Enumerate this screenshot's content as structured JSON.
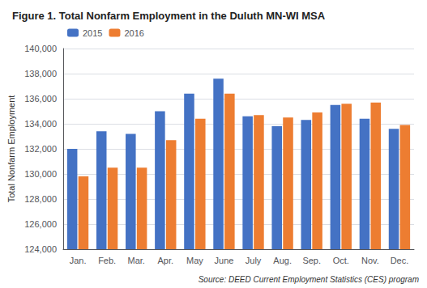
{
  "chart_data": {
    "type": "bar",
    "title": "Figure 1. Total Nonfarm Employment in the Duluth MN-WI MSA",
    "ylabel": "Total Nonfarm Employment",
    "annotations": [
      "Source: DEED Current Employment Statistics (CES) program"
    ],
    "categories": [
      "Jan.",
      "Feb.",
      "Mar.",
      "Apr.",
      "May",
      "June",
      "July",
      "Aug.",
      "Sep.",
      "Oct.",
      "Nov.",
      "Dec."
    ],
    "series": [
      {
        "name": "2015",
        "color": "#4472C4",
        "values": [
          132000,
          133400,
          133200,
          135000,
          136400,
          137600,
          134600,
          133800,
          134300,
          135500,
          134400,
          133600
        ]
      },
      {
        "name": "2016",
        "color": "#ED7D31",
        "values": [
          129800,
          130500,
          130500,
          132700,
          134400,
          136400,
          134700,
          134500,
          134900,
          135600,
          135700,
          133900
        ]
      }
    ],
    "ylim": [
      124000,
      140000
    ],
    "yticks": [
      {
        "value": 124000,
        "label": "124,000"
      },
      {
        "value": 126000,
        "label": "126,000"
      },
      {
        "value": 128000,
        "label": "128,000"
      },
      {
        "value": 130000,
        "label": "130,000"
      },
      {
        "value": 132000,
        "label": "132,000"
      },
      {
        "value": 134000,
        "label": "134,000"
      },
      {
        "value": 136000,
        "label": "136,000"
      },
      {
        "value": 138000,
        "label": "138,000"
      },
      {
        "value": 140000,
        "label": "140,000"
      }
    ],
    "grid": true,
    "legend": "upper left"
  }
}
